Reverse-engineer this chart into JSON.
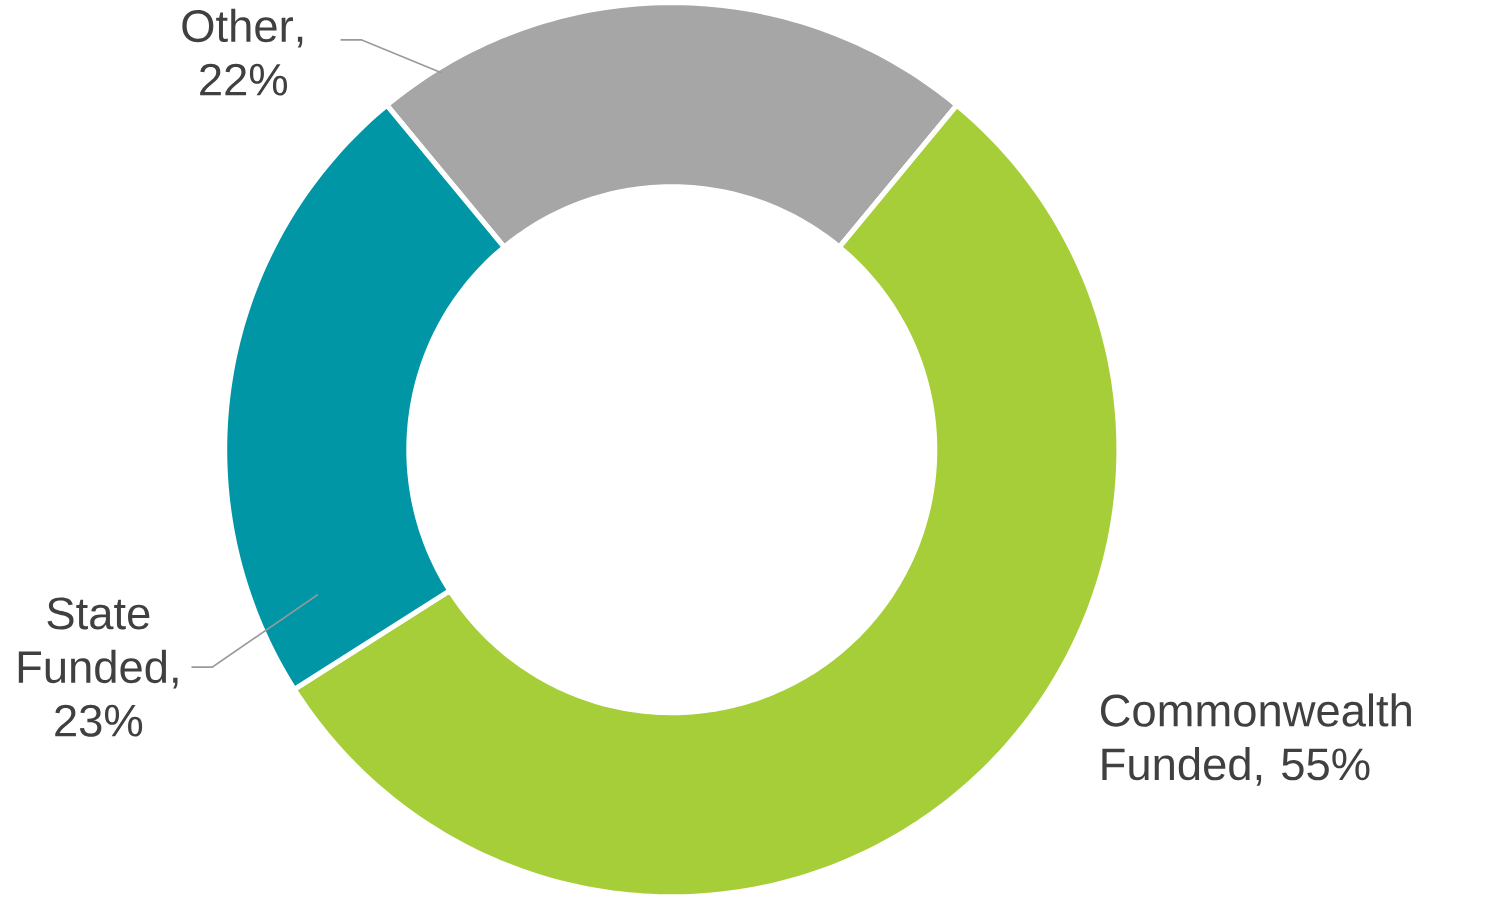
{
  "chart_data": {
    "type": "donut",
    "categories": [
      "Other",
      "Commonwealth Funded",
      "State Funded"
    ],
    "values": [
      22,
      55,
      23
    ],
    "colors": [
      "#a6a6a6",
      "#a6ce39",
      "#0096a6"
    ],
    "value_labels": [
      ", 22%",
      ", 55%",
      ", 23%"
    ]
  }
}
